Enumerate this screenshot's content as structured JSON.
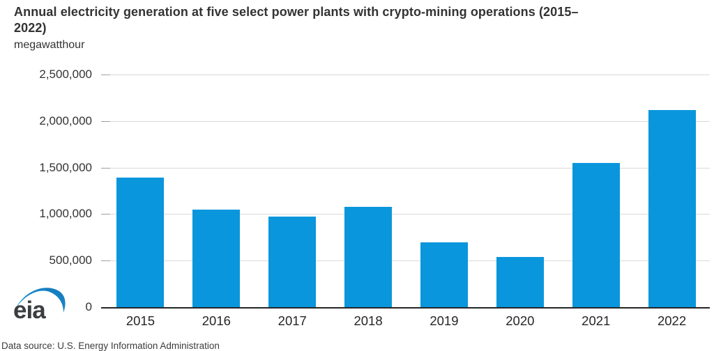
{
  "page": {
    "title_lines": [
      "Annual electricity generation at five select power plants with crypto-mining operations (2015–",
      "2022)"
    ],
    "subtitle": "megawatthour",
    "caption": "Data source: U.S. Energy Information Administration"
  },
  "logo": {
    "text": "eia"
  },
  "chart_data": {
    "type": "bar",
    "title": "Annual electricity generation at five select power plants with crypto-mining operations (2015–2022)",
    "ylabel": "megawatthour",
    "xlabel": "",
    "categories": [
      "2015",
      "2016",
      "2017",
      "2018",
      "2019",
      "2020",
      "2021",
      "2022"
    ],
    "values": [
      1390000,
      1045000,
      975000,
      1080000,
      700000,
      540000,
      1550000,
      2120000
    ],
    "ylim": [
      0,
      2500000
    ],
    "y_tick_step": 500000,
    "y_tick_labels": [
      "0",
      "500,000",
      "1,000,000",
      "1,500,000",
      "2,000,000",
      "2,500,000"
    ],
    "grid": true,
    "legend_position": "none",
    "bar_color": "#0996dc",
    "gridline_color": "#d9d9d9",
    "axis_color": "#262626",
    "text_color": "#333333"
  }
}
